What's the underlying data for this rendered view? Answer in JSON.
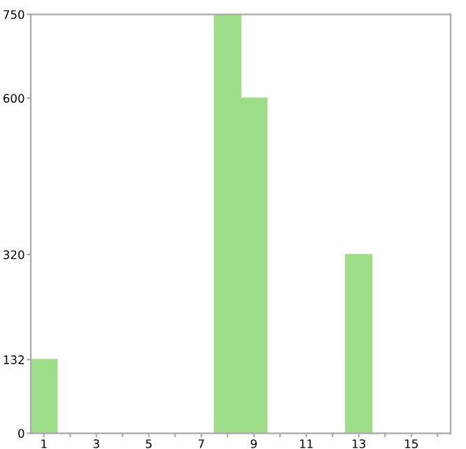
{
  "chart_data": {
    "type": "bar",
    "categories": [
      "1",
      null,
      "3",
      null,
      "5",
      null,
      "7",
      null,
      "9",
      null,
      "11",
      null,
      "13",
      null,
      "15",
      null
    ],
    "values": [
      132,
      0,
      0,
      0,
      0,
      0,
      0,
      750,
      600,
      0,
      0,
      0,
      320,
      0,
      0,
      0
    ],
    "color": "#9edd88",
    "ylim": [
      0,
      750
    ],
    "yticks": [
      0,
      132,
      320,
      600,
      750
    ],
    "grid": false
  }
}
